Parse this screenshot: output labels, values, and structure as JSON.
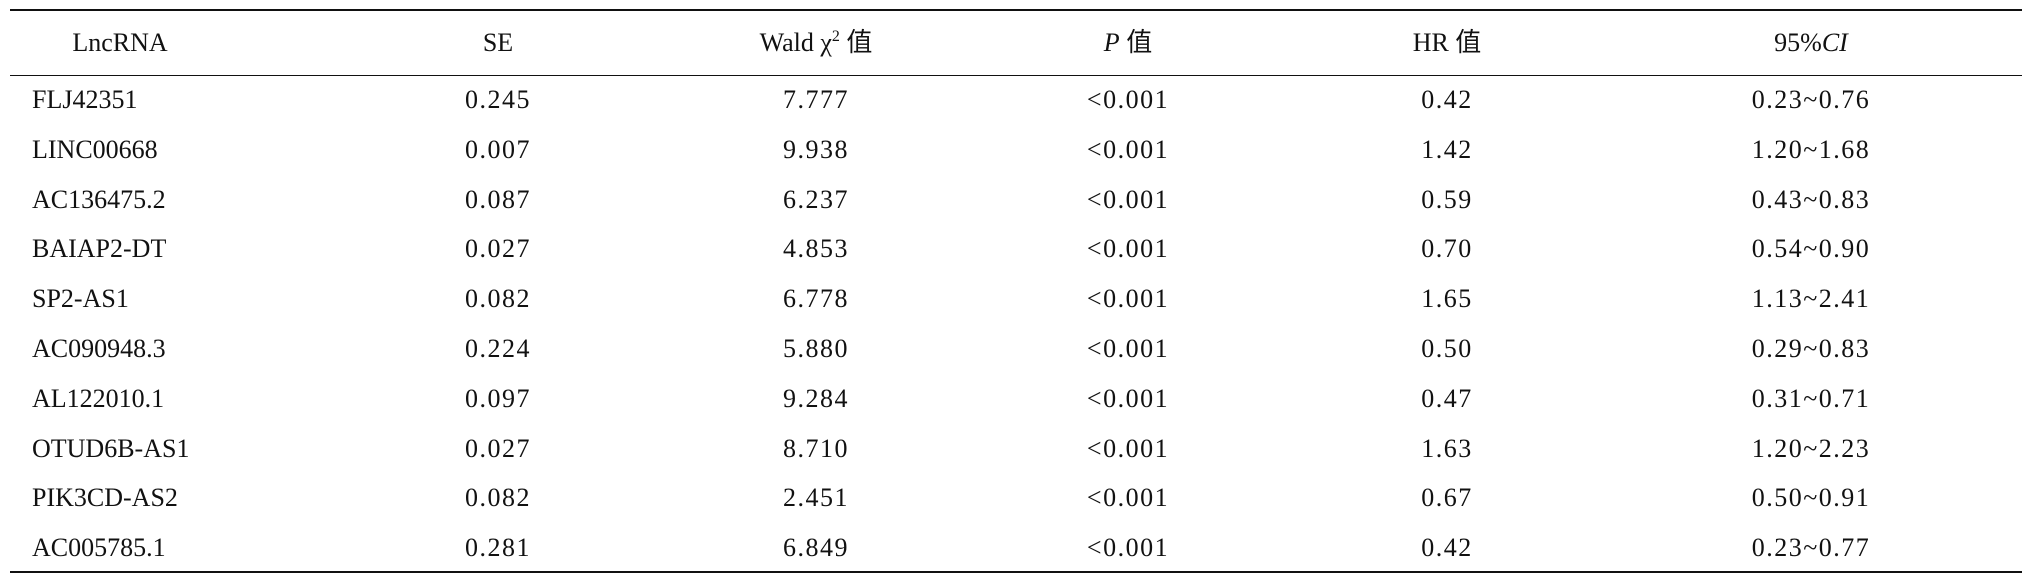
{
  "table": {
    "headers": [
      "LncRNA",
      "SE",
      {
        "main": "Wald χ",
        "sup": "2",
        "rest": " 值"
      },
      {
        "italic": "P",
        "rest": " 值"
      },
      "HR 值",
      {
        "main": "95%",
        "italic": "CI"
      }
    ],
    "rows": [
      [
        "FLJ42351",
        "0.245",
        "7.777",
        "<0.001",
        "0.42",
        "0.23~0.76"
      ],
      [
        "LINC00668",
        "0.007",
        "9.938",
        "<0.001",
        "1.42",
        "1.20~1.68"
      ],
      [
        "AC136475.2",
        "0.087",
        "6.237",
        "<0.001",
        "0.59",
        "0.43~0.83"
      ],
      [
        "BAIAP2-DT",
        "0.027",
        "4.853",
        "<0.001",
        "0.70",
        "0.54~0.90"
      ],
      [
        "SP2-AS1",
        "0.082",
        "6.778",
        "<0.001",
        "1.65",
        "1.13~2.41"
      ],
      [
        "AC090948.3",
        "0.224",
        "5.880",
        "<0.001",
        "0.50",
        "0.29~0.83"
      ],
      [
        "AL122010.1",
        "0.097",
        "9.284",
        "<0.001",
        "0.47",
        "0.31~0.71"
      ],
      [
        "OTUD6B-AS1",
        "0.027",
        "8.710",
        "<0.001",
        "1.63",
        "1.20~2.23"
      ],
      [
        "PIK3CD-AS2",
        "0.082",
        "2.451",
        "<0.001",
        "0.67",
        "0.50~0.91"
      ],
      [
        "AC005785.1",
        "0.281",
        "6.849",
        "<0.001",
        "0.42",
        "0.23~0.77"
      ]
    ]
  }
}
